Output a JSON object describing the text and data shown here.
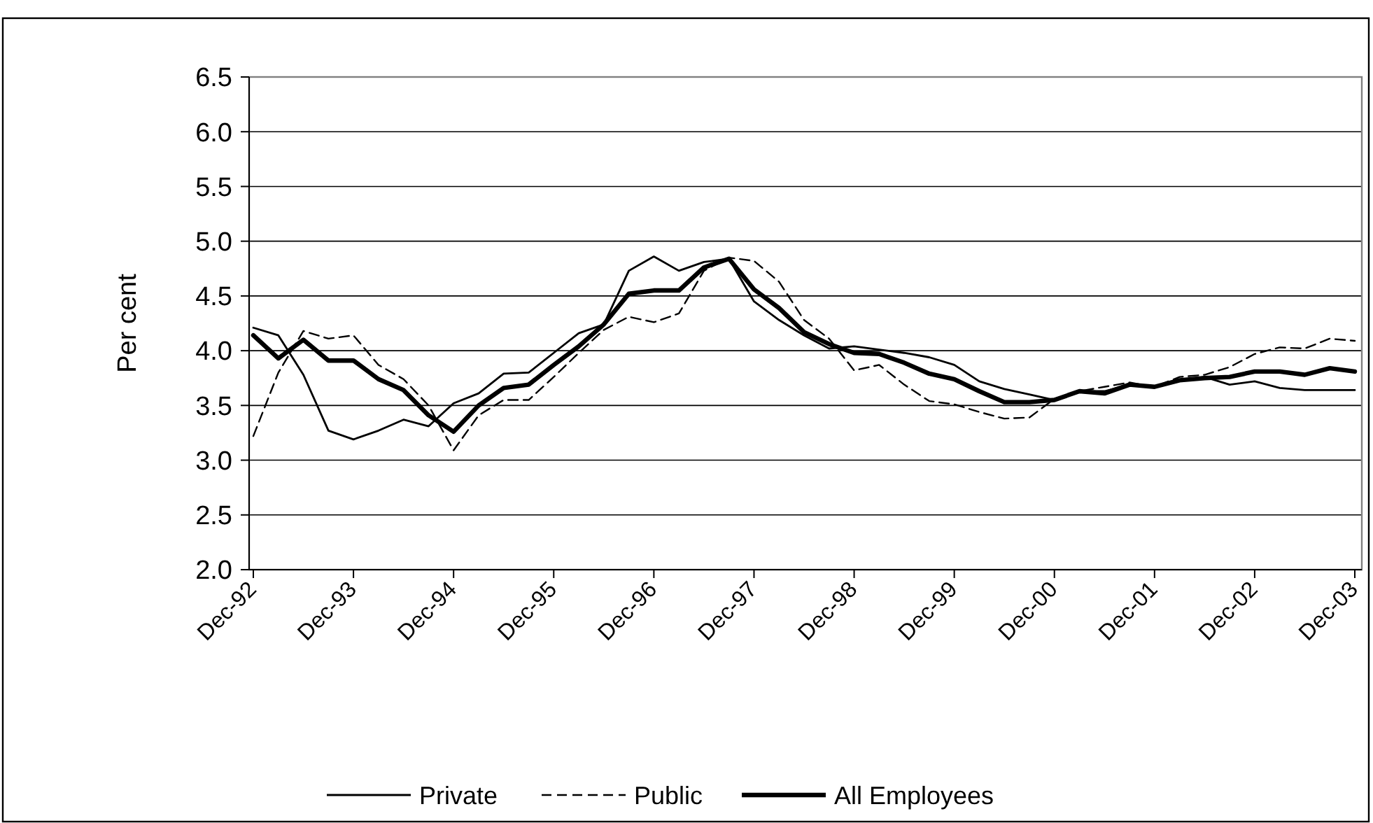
{
  "chart_data": {
    "type": "line",
    "ylabel": "Per cent",
    "categories": [
      "Dec-92",
      null,
      null,
      null,
      "Dec-93",
      null,
      null,
      null,
      "Dec-94",
      null,
      null,
      null,
      "Dec-95",
      null,
      null,
      null,
      "Dec-96",
      null,
      null,
      null,
      "Dec-97",
      null,
      null,
      null,
      "Dec-98",
      null,
      null,
      null,
      "Dec-99",
      null,
      null,
      null,
      "Dec-00",
      null,
      null,
      null,
      "Dec-01",
      null,
      null,
      null,
      "Dec-02",
      null,
      null,
      null,
      "Dec-03"
    ],
    "series": [
      {
        "name": "Private",
        "color": "#000000",
        "line_style": "solid",
        "values": [
          4.21,
          4.14,
          3.78,
          3.27,
          3.19,
          3.27,
          3.37,
          3.31,
          3.52,
          3.61,
          3.79,
          3.8,
          3.98,
          4.16,
          4.24,
          4.73,
          4.86,
          4.73,
          4.81,
          4.84,
          4.45,
          4.28,
          4.14,
          4.02,
          4.04,
          4.01,
          3.98,
          3.94,
          3.87,
          3.72,
          3.65,
          3.6,
          3.55,
          3.63,
          3.63,
          3.69,
          3.67,
          3.73,
          3.76,
          3.69,
          3.72,
          3.66,
          3.64,
          3.64,
          3.64
        ]
      },
      {
        "name": "Public",
        "color": "#000000",
        "line_style": "dashed",
        "values": [
          3.22,
          3.8,
          4.18,
          4.11,
          4.14,
          3.87,
          3.74,
          3.5,
          3.09,
          3.41,
          3.55,
          3.55,
          3.76,
          3.98,
          4.19,
          4.31,
          4.26,
          4.34,
          4.73,
          4.85,
          4.82,
          4.63,
          4.28,
          4.11,
          3.82,
          3.87,
          3.69,
          3.54,
          3.51,
          3.44,
          3.38,
          3.39,
          3.56,
          3.63,
          3.67,
          3.71,
          3.67,
          3.76,
          3.78,
          3.85,
          3.97,
          4.03,
          4.02,
          4.11,
          4.09
        ]
      },
      {
        "name": "All Employees",
        "color": "#000000",
        "line_style": "solid",
        "values": [
          4.14,
          3.93,
          4.1,
          3.91,
          3.91,
          3.74,
          3.64,
          3.41,
          3.26,
          3.5,
          3.66,
          3.69,
          3.87,
          4.04,
          4.24,
          4.52,
          4.55,
          4.55,
          4.76,
          4.84,
          4.56,
          4.39,
          4.17,
          4.06,
          3.98,
          3.97,
          3.89,
          3.79,
          3.74,
          3.63,
          3.53,
          3.53,
          3.55,
          3.63,
          3.61,
          3.69,
          3.67,
          3.73,
          3.75,
          3.76,
          3.81,
          3.81,
          3.78,
          3.84,
          3.81
        ]
      }
    ],
    "ylim": [
      2,
      6.5
    ],
    "yticks": [
      {
        "value": 2,
        "label": "2.0"
      },
      {
        "value": 2.5,
        "label": "2.5"
      },
      {
        "value": 3,
        "label": "3.0"
      },
      {
        "value": 3.5,
        "label": "3.5"
      },
      {
        "value": 4,
        "label": "4.0"
      },
      {
        "value": 4.5,
        "label": "4.5"
      },
      {
        "value": 5,
        "label": "5.0"
      },
      {
        "value": 5.5,
        "label": "5.5"
      },
      {
        "value": 6,
        "label": "6.0"
      },
      {
        "value": 6.5,
        "label": "6.5"
      }
    ],
    "grid": "y",
    "legend": "bottom",
    "marker": "none"
  }
}
